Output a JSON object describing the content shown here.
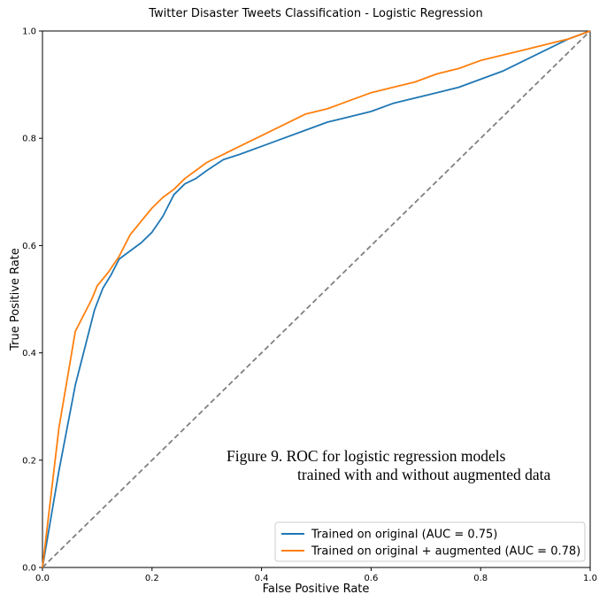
{
  "chart_data": {
    "type": "line",
    "title": "Twitter Disaster Tweets Classification - Logistic Regression",
    "xlabel": "False Positive Rate",
    "ylabel": "True Positive Rate",
    "xlim": [
      0.0,
      1.0
    ],
    "ylim": [
      0.0,
      1.0
    ],
    "xticks": [
      "0.0",
      "0.2",
      "0.4",
      "0.6",
      "0.8",
      "1.0"
    ],
    "yticks": [
      "0.0",
      "0.2",
      "0.4",
      "0.6",
      "0.8",
      "1.0"
    ],
    "grid": false,
    "legend_position": "lower-right",
    "series": [
      {
        "name": "Trained on original (AUC = 0.75)",
        "color": "#1f77b4",
        "points": [
          [
            0.0,
            0.0
          ],
          [
            0.03,
            0.18
          ],
          [
            0.06,
            0.34
          ],
          [
            0.075,
            0.4
          ],
          [
            0.085,
            0.44
          ],
          [
            0.095,
            0.48
          ],
          [
            0.11,
            0.52
          ],
          [
            0.125,
            0.545
          ],
          [
            0.14,
            0.575
          ],
          [
            0.16,
            0.59
          ],
          [
            0.18,
            0.605
          ],
          [
            0.2,
            0.625
          ],
          [
            0.22,
            0.655
          ],
          [
            0.24,
            0.695
          ],
          [
            0.26,
            0.715
          ],
          [
            0.28,
            0.725
          ],
          [
            0.3,
            0.74
          ],
          [
            0.33,
            0.76
          ],
          [
            0.36,
            0.77
          ],
          [
            0.4,
            0.785
          ],
          [
            0.44,
            0.8
          ],
          [
            0.48,
            0.815
          ],
          [
            0.52,
            0.83
          ],
          [
            0.56,
            0.84
          ],
          [
            0.6,
            0.85
          ],
          [
            0.64,
            0.865
          ],
          [
            0.68,
            0.875
          ],
          [
            0.72,
            0.885
          ],
          [
            0.76,
            0.895
          ],
          [
            0.8,
            0.91
          ],
          [
            0.84,
            0.925
          ],
          [
            0.88,
            0.945
          ],
          [
            0.92,
            0.965
          ],
          [
            0.96,
            0.985
          ],
          [
            1.0,
            1.0
          ]
        ]
      },
      {
        "name": "Trained on original + augmented (AUC = 0.78)",
        "color": "#ff7f0e",
        "points": [
          [
            0.0,
            0.0
          ],
          [
            0.03,
            0.26
          ],
          [
            0.06,
            0.44
          ],
          [
            0.08,
            0.48
          ],
          [
            0.09,
            0.5
          ],
          [
            0.1,
            0.525
          ],
          [
            0.12,
            0.55
          ],
          [
            0.14,
            0.58
          ],
          [
            0.16,
            0.62
          ],
          [
            0.18,
            0.645
          ],
          [
            0.2,
            0.67
          ],
          [
            0.22,
            0.69
          ],
          [
            0.24,
            0.705
          ],
          [
            0.26,
            0.725
          ],
          [
            0.28,
            0.74
          ],
          [
            0.3,
            0.755
          ],
          [
            0.33,
            0.77
          ],
          [
            0.36,
            0.785
          ],
          [
            0.4,
            0.805
          ],
          [
            0.44,
            0.825
          ],
          [
            0.48,
            0.845
          ],
          [
            0.52,
            0.855
          ],
          [
            0.56,
            0.87
          ],
          [
            0.6,
            0.885
          ],
          [
            0.64,
            0.895
          ],
          [
            0.68,
            0.905
          ],
          [
            0.72,
            0.92
          ],
          [
            0.76,
            0.93
          ],
          [
            0.8,
            0.945
          ],
          [
            0.84,
            0.955
          ],
          [
            0.88,
            0.965
          ],
          [
            0.92,
            0.975
          ],
          [
            0.96,
            0.985
          ],
          [
            1.0,
            1.0
          ]
        ]
      },
      {
        "name": "",
        "color": "#808080",
        "style": "dashed",
        "points": [
          [
            0.0,
            0.0
          ],
          [
            1.0,
            1.0
          ]
        ]
      }
    ],
    "annotation": [
      "Figure 9.  ROC for logistic regression models",
      "trained with and without augmented data"
    ]
  }
}
